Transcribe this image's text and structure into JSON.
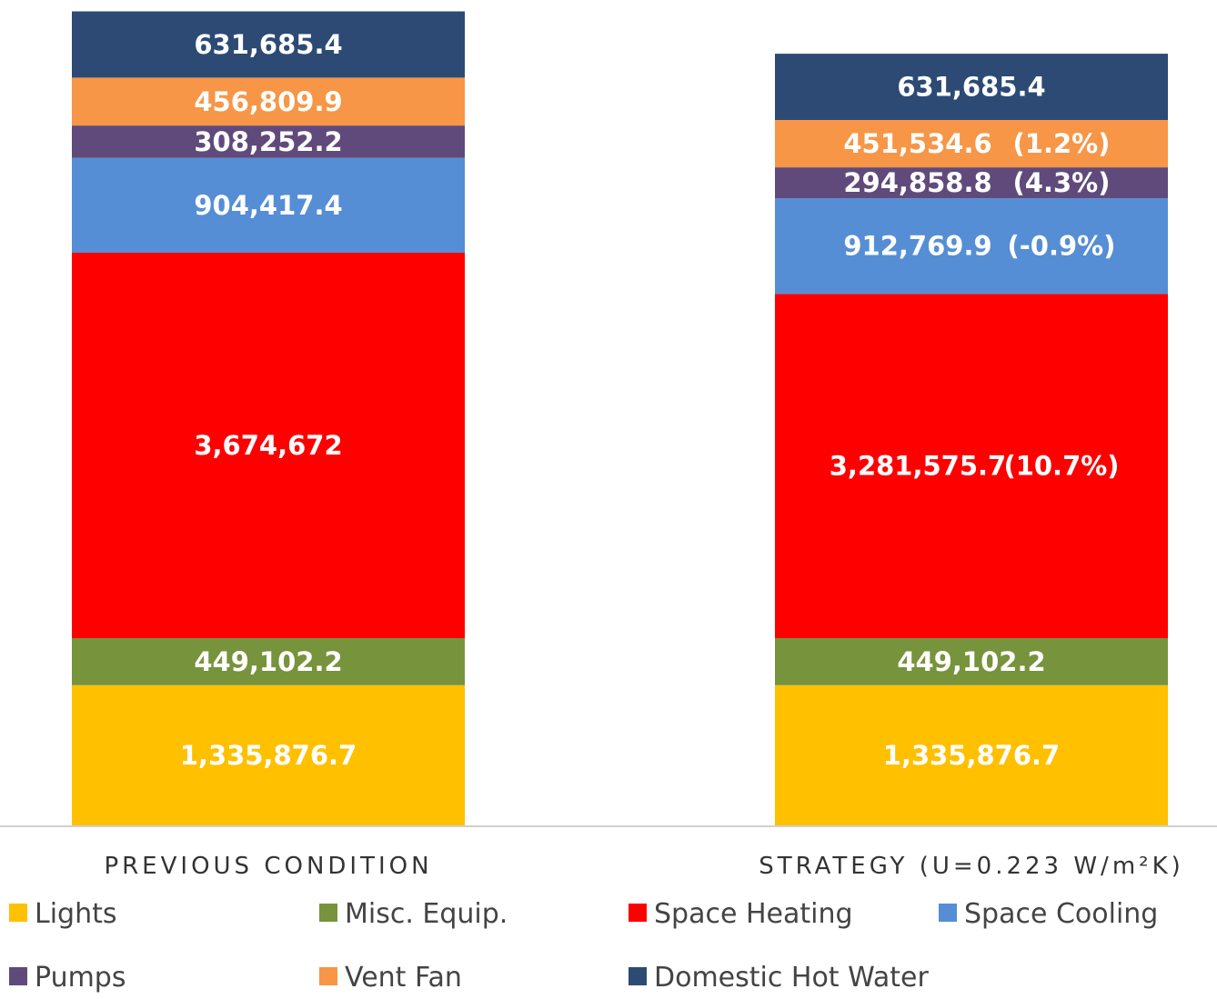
{
  "chart_data": {
    "type": "bar",
    "stacked": true,
    "categories": [
      "PREVIOUS CONDITION",
      "STRATEGY (U=0.223 W/m²K)"
    ],
    "series": [
      {
        "name": "Lights",
        "color": "#FFC000",
        "values": [
          1335876.7,
          1335876.7
        ],
        "labels": [
          "1,335,876.7",
          "1,335,876.7"
        ],
        "notes": [
          "",
          ""
        ]
      },
      {
        "name": "Misc. Equip.",
        "color": "#77933C",
        "values": [
          449102.2,
          449102.2
        ],
        "labels": [
          "449,102.2",
          "449,102.2"
        ],
        "notes": [
          "",
          ""
        ]
      },
      {
        "name": "Space Heating",
        "color": "#FF0000",
        "values": [
          3674672,
          3281575.7
        ],
        "labels": [
          "3,674,672",
          "3,281,575.7"
        ],
        "notes": [
          "",
          "(10.7%)"
        ]
      },
      {
        "name": "Space Cooling",
        "color": "#558ED5",
        "values": [
          904417.4,
          912769.9
        ],
        "labels": [
          "904,417.4",
          "912,769.9"
        ],
        "notes": [
          "",
          "(-0.9%)"
        ]
      },
      {
        "name": "Pumps",
        "color": "#604A7B",
        "values": [
          308252.2,
          294858.8
        ],
        "labels": [
          "308,252.2",
          "294,858.8"
        ],
        "notes": [
          "",
          "(4.3%)"
        ]
      },
      {
        "name": "Vent Fan",
        "color": "#F79646",
        "values": [
          456809.9,
          451534.6
        ],
        "labels": [
          "456,809.9",
          "451,534.6"
        ],
        "notes": [
          "",
          "(1.2%)"
        ]
      },
      {
        "name": "Domestic Hot Water",
        "color": "#2C4A74",
        "values": [
          631685.4,
          631685.4
        ],
        "labels": [
          "631,685.4",
          "631,685.4"
        ],
        "notes": [
          "",
          ""
        ]
      }
    ],
    "legend_order": [
      "Lights",
      "Misc. Equip.",
      "Space Heating",
      "Space Cooling",
      "Pumps",
      "Vent Fan",
      "Domestic Hot Water"
    ],
    "legend_position": "bottom",
    "axis_visible": false,
    "grid": false,
    "ylim": [
      0,
      7800000
    ]
  }
}
